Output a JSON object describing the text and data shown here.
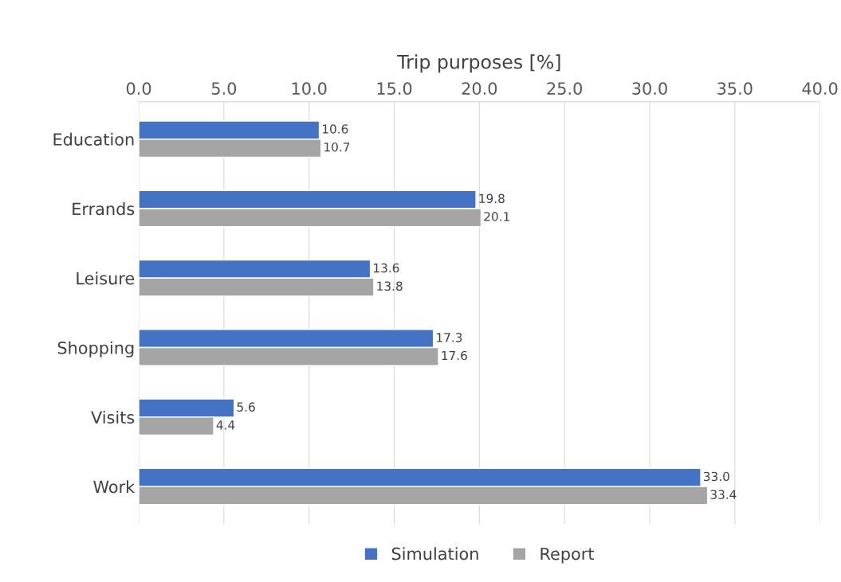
{
  "chart_data": {
    "type": "bar",
    "orientation": "horizontal",
    "xlabel": "Trip purposes [%]",
    "categories": [
      "Education",
      "Errands",
      "Leisure",
      "Shopping",
      "Visits",
      "Work"
    ],
    "series": [
      {
        "name": "Simulation",
        "color": "#4472c4",
        "values": [
          10.6,
          19.8,
          13.6,
          17.3,
          5.6,
          33.0
        ],
        "value_labels": [
          "10.6",
          "19.8",
          "13.6",
          "17.3",
          "5.6",
          "33.0"
        ]
      },
      {
        "name": "Report",
        "color": "#a5a5a5",
        "values": [
          10.7,
          20.1,
          13.8,
          17.6,
          4.4,
          33.4
        ],
        "value_labels": [
          "10.7",
          "20.1",
          "13.8",
          "17.6",
          "4.4",
          "33.4"
        ]
      }
    ],
    "xlim": [
      0,
      40
    ],
    "xticks": [
      {
        "value": 0,
        "label": "0.0"
      },
      {
        "value": 5,
        "label": "5.0"
      },
      {
        "value": 10,
        "label": "10.0"
      },
      {
        "value": 15,
        "label": "15.0"
      },
      {
        "value": 20,
        "label": "20.0"
      },
      {
        "value": 25,
        "label": "25.0"
      },
      {
        "value": 30,
        "label": "30.0"
      },
      {
        "value": 35,
        "label": "35.0"
      },
      {
        "value": 40,
        "label": "40.0"
      }
    ],
    "grid": "x",
    "legend": "bottom"
  }
}
